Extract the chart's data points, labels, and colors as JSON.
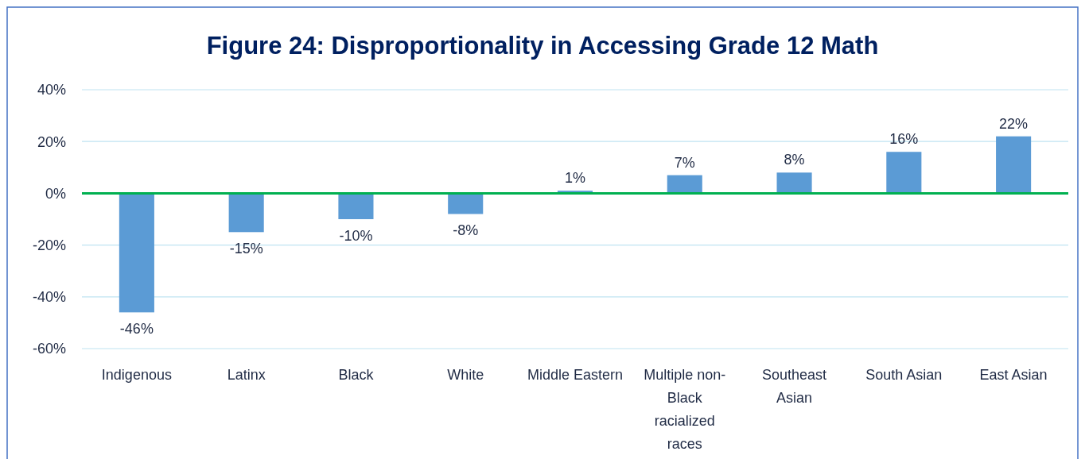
{
  "chart_data": {
    "type": "bar",
    "title": "Figure 24: Disproportionality in Accessing Grade 12 Math",
    "categories": [
      "Indigenous",
      "Latinx",
      "Black",
      "White",
      "Middle Eastern",
      "Multiple non-Black racialized races",
      "Southeast Asian",
      "South Asian",
      "East Asian"
    ],
    "values": [
      -46,
      -15,
      -10,
      -8,
      1,
      7,
      8,
      16,
      22
    ],
    "color": "#5b9bd5",
    "ylim": [
      -60,
      40
    ],
    "yticks": [
      {
        "value": -60,
        "label": "-60%"
      },
      {
        "value": -40,
        "label": "-40%"
      },
      {
        "value": -20,
        "label": "-20%"
      },
      {
        "value": 0,
        "label": "0%"
      },
      {
        "value": 20,
        "label": "20%"
      },
      {
        "value": 40,
        "label": "40%"
      }
    ],
    "grid": "y",
    "ref_lines": [
      {
        "axis": "y",
        "value": 0,
        "color": "#00b050"
      }
    ],
    "data_labels": true,
    "value_labels": [
      "-46%",
      "-15%",
      "-10%",
      "-8%",
      "1%",
      "7%",
      "8%",
      "16%",
      "22%"
    ]
  }
}
